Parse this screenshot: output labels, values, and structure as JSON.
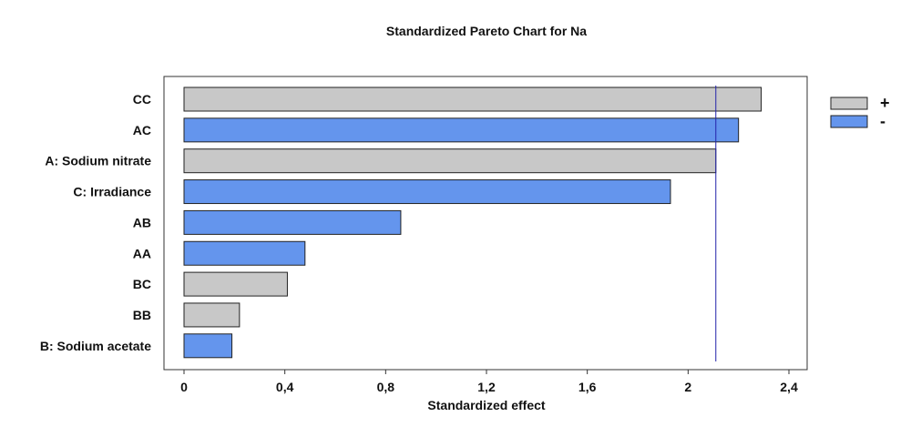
{
  "chart_data": {
    "type": "bar",
    "orientation": "horizontal",
    "title": "Standardized Pareto Chart for Na",
    "xlabel": "Standardized effect",
    "ylabel": "",
    "xlim": [
      0,
      2.4
    ],
    "xticks": [
      0,
      0.4,
      0.8,
      1.2,
      1.6,
      2,
      2.4
    ],
    "xtick_labels": [
      "0",
      "0,4",
      "0,8",
      "1,2",
      "1,6",
      "2",
      "2,4"
    ],
    "categories": [
      "CC",
      "AC",
      "A: Sodium nitrate",
      "C: Irradiance",
      "AB",
      "AA",
      "BC",
      "BB",
      "B: Sodium acetate"
    ],
    "values": [
      2.29,
      2.2,
      2.11,
      1.93,
      0.86,
      0.48,
      0.41,
      0.22,
      0.19
    ],
    "signs": [
      "+",
      "-",
      "+",
      "-",
      "-",
      "-",
      "+",
      "+",
      "-"
    ],
    "reference_line": 2.11,
    "grid": false,
    "legend": {
      "placement": "right",
      "entries": [
        {
          "label": "+",
          "color": "#c8c8c8"
        },
        {
          "label": "-",
          "color": "#6495ed"
        }
      ]
    },
    "colors": {
      "positive": "#c8c8c8",
      "negative": "#6495ed",
      "reference_line": "#2222aa",
      "bar_stroke": "#222222"
    }
  }
}
